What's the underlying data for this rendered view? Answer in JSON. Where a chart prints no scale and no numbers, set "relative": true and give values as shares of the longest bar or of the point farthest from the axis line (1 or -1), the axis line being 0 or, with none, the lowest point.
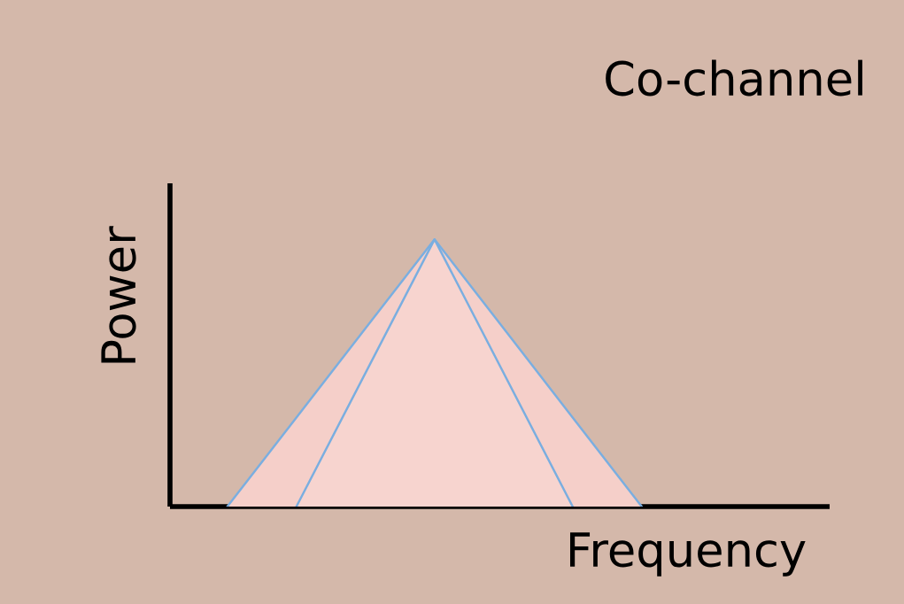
{
  "chart_data": {
    "type": "area",
    "title": "Co-channel",
    "xlabel": "Frequency",
    "ylabel": "Power",
    "relative": true,
    "categories": [
      null,
      null,
      null,
      null,
      null,
      null,
      null,
      null,
      null,
      null
    ],
    "series": [
      {
        "color": "#f5cfc9",
        "values": [
          null,
          0,
          0.333,
          0.667,
          1,
          0.667,
          0.333,
          0,
          null,
          null
        ]
      },
      {
        "color": "#f7d4cf",
        "values": [
          null,
          null,
          0,
          0.5,
          1,
          0.5,
          0,
          null,
          null,
          null
        ]
      }
    ]
  }
}
